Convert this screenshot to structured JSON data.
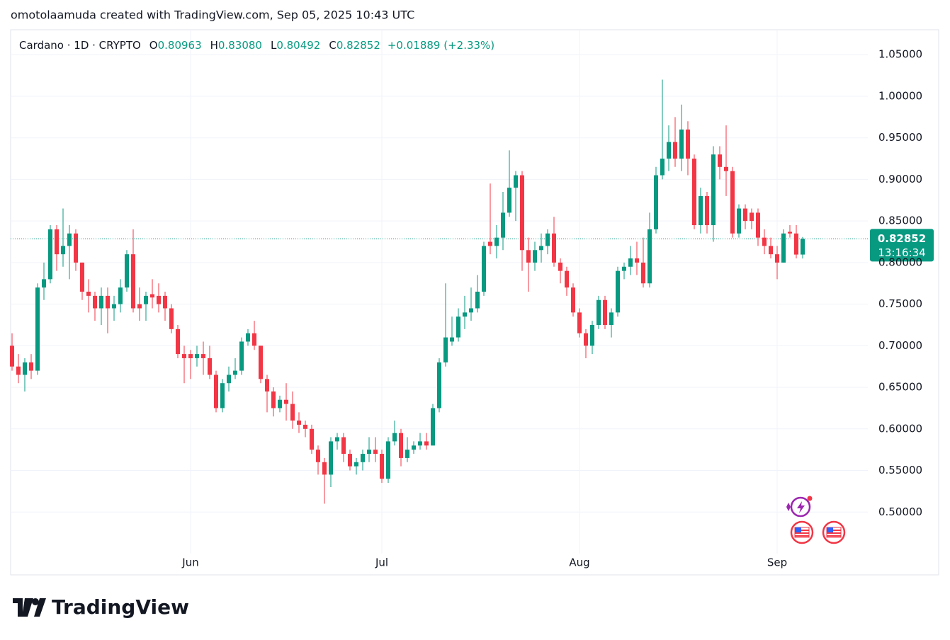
{
  "attribution": "omotolaamuda created with TradingView.com, Sep 05, 2025 10:43 UTC",
  "logo": "TradingView",
  "chart_data": {
    "type": "candlestick",
    "symbol": "Cardano · 1D · CRYPTO",
    "legend": [
      {
        "label": "O",
        "value": "0.80963"
      },
      {
        "label": "H",
        "value": "0.83080"
      },
      {
        "label": "L",
        "value": "0.80492"
      },
      {
        "label": "C",
        "value": "0.82852"
      }
    ],
    "change": "+0.01889 (+2.33%)",
    "price_tag": {
      "price": "0.82852",
      "countdown": "13:16:34"
    },
    "up_color": "#089981",
    "down_color": "#f23645",
    "grid": true,
    "categories": [
      null,
      null,
      null,
      null,
      null,
      null,
      null,
      null,
      null,
      null,
      null,
      null,
      null,
      null,
      null,
      null,
      null,
      null,
      null,
      null,
      null,
      null,
      null,
      null,
      null,
      null,
      null,
      null,
      "Jun",
      null,
      null,
      null,
      null,
      null,
      null,
      null,
      null,
      null,
      null,
      null,
      null,
      null,
      null,
      null,
      null,
      null,
      null,
      null,
      null,
      null,
      null,
      null,
      null,
      null,
      null,
      null,
      null,
      null,
      "Jul",
      null,
      null,
      null,
      null,
      null,
      null,
      null,
      null,
      null,
      null,
      null,
      null,
      null,
      null,
      null,
      null,
      null,
      null,
      null,
      null,
      null,
      null,
      null,
      null,
      null,
      null,
      null,
      null,
      null,
      null,
      "Aug",
      null,
      null,
      null,
      null,
      null,
      null,
      null,
      null,
      null,
      null,
      null,
      null,
      null,
      null,
      null,
      null,
      null,
      null,
      null,
      null,
      null,
      null,
      null,
      null,
      null,
      null,
      null,
      null,
      null,
      null,
      "Sep",
      null,
      null,
      null,
      null
    ],
    "open": [
      0.7,
      0.675,
      0.665,
      0.68,
      0.67,
      0.77,
      0.78,
      0.84,
      0.81,
      0.82,
      0.835,
      0.8,
      0.765,
      0.76,
      0.745,
      0.76,
      0.745,
      0.75,
      0.77,
      0.81,
      0.75,
      0.75,
      0.762,
      0.76,
      0.76,
      0.745,
      0.72,
      0.69,
      0.69,
      0.685,
      0.69,
      0.685,
      0.665,
      0.625,
      0.655,
      0.665,
      0.67,
      0.705,
      0.715,
      0.7,
      0.66,
      0.645,
      0.625,
      0.635,
      0.63,
      0.61,
      0.605,
      0.6,
      0.575,
      0.56,
      0.545,
      0.585,
      0.59,
      0.57,
      0.555,
      0.56,
      0.57,
      0.575,
      0.57,
      0.54,
      0.585,
      0.595,
      0.565,
      0.575,
      0.58,
      0.585,
      0.58,
      0.625,
      0.68,
      0.705,
      0.71,
      0.735,
      0.74,
      0.745,
      0.765,
      0.825,
      0.82,
      0.83,
      0.86,
      0.89,
      0.905,
      0.815,
      0.8,
      0.815,
      0.82,
      0.835,
      0.8,
      0.79,
      0.77,
      0.74,
      0.715,
      0.7,
      0.725,
      0.755,
      0.725,
      0.74,
      0.79,
      0.795,
      0.805,
      0.8,
      0.775,
      0.84,
      0.905,
      0.925,
      0.945,
      0.925,
      0.96,
      0.925,
      0.845,
      0.88,
      0.845,
      0.93,
      0.915,
      0.91,
      0.835,
      0.865,
      0.86,
      0.86,
      0.83,
      0.82,
      0.81,
      0.8,
      0.837,
      0.835,
      0.80963
    ],
    "high": [
      0.715,
      0.69,
      0.685,
      0.69,
      0.775,
      0.8,
      0.845,
      0.845,
      0.865,
      0.845,
      0.84,
      0.8,
      0.78,
      0.765,
      0.77,
      0.77,
      0.76,
      0.78,
      0.815,
      0.84,
      0.77,
      0.765,
      0.78,
      0.775,
      0.765,
      0.75,
      0.725,
      0.7,
      0.695,
      0.7,
      0.705,
      0.7,
      0.67,
      0.66,
      0.675,
      0.685,
      0.71,
      0.72,
      0.73,
      0.7,
      0.665,
      0.65,
      0.64,
      0.655,
      0.645,
      0.62,
      0.61,
      0.605,
      0.58,
      0.565,
      0.59,
      0.595,
      0.595,
      0.575,
      0.565,
      0.575,
      0.59,
      0.59,
      0.575,
      0.59,
      0.61,
      0.6,
      0.59,
      0.585,
      0.595,
      0.595,
      0.63,
      0.685,
      0.775,
      0.735,
      0.745,
      0.76,
      0.77,
      0.785,
      0.825,
      0.895,
      0.845,
      0.885,
      0.935,
      0.91,
      0.91,
      0.83,
      0.825,
      0.835,
      0.84,
      0.855,
      0.805,
      0.795,
      0.775,
      0.745,
      0.72,
      0.73,
      0.76,
      0.76,
      0.745,
      0.795,
      0.8,
      0.82,
      0.825,
      0.83,
      0.86,
      0.915,
      1.02,
      0.965,
      0.975,
      0.99,
      0.97,
      0.93,
      0.89,
      0.885,
      0.94,
      0.94,
      0.965,
      0.915,
      0.87,
      0.87,
      0.865,
      0.865,
      0.84,
      0.83,
      0.82,
      0.84,
      0.845,
      0.845,
      0.8308
    ],
    "low": [
      0.67,
      0.655,
      0.645,
      0.66,
      0.665,
      0.755,
      0.775,
      0.79,
      0.795,
      0.78,
      0.79,
      0.755,
      0.74,
      0.73,
      0.725,
      0.715,
      0.73,
      0.74,
      0.765,
      0.74,
      0.73,
      0.73,
      0.745,
      0.74,
      0.73,
      0.715,
      0.685,
      0.655,
      0.66,
      0.675,
      0.665,
      0.66,
      0.62,
      0.62,
      0.645,
      0.66,
      0.665,
      0.7,
      0.695,
      0.655,
      0.62,
      0.615,
      0.62,
      0.61,
      0.6,
      0.595,
      0.59,
      0.57,
      0.545,
      0.51,
      0.53,
      0.575,
      0.56,
      0.55,
      0.545,
      0.55,
      0.56,
      0.56,
      0.535,
      0.535,
      0.58,
      0.555,
      0.56,
      0.57,
      0.575,
      0.575,
      0.58,
      0.62,
      0.675,
      0.7,
      0.705,
      0.72,
      0.73,
      0.74,
      0.76,
      0.81,
      0.805,
      0.815,
      0.855,
      0.85,
      0.79,
      0.765,
      0.79,
      0.8,
      0.81,
      0.795,
      0.775,
      0.76,
      0.735,
      0.71,
      0.685,
      0.69,
      0.72,
      0.72,
      0.71,
      0.735,
      0.78,
      0.785,
      0.785,
      0.77,
      0.77,
      0.835,
      0.9,
      0.91,
      0.915,
      0.91,
      0.905,
      0.84,
      0.835,
      0.835,
      0.825,
      0.9,
      0.88,
      0.83,
      0.83,
      0.84,
      0.84,
      0.82,
      0.81,
      0.805,
      0.78,
      0.8,
      0.83,
      0.805,
      0.80492
    ],
    "close": [
      0.675,
      0.665,
      0.68,
      0.67,
      0.77,
      0.78,
      0.84,
      0.81,
      0.82,
      0.835,
      0.8,
      0.765,
      0.76,
      0.745,
      0.76,
      0.745,
      0.75,
      0.77,
      0.81,
      0.745,
      0.745,
      0.76,
      0.758,
      0.75,
      0.745,
      0.72,
      0.69,
      0.685,
      0.685,
      0.69,
      0.685,
      0.665,
      0.625,
      0.655,
      0.665,
      0.67,
      0.705,
      0.715,
      0.7,
      0.66,
      0.645,
      0.625,
      0.635,
      0.63,
      0.61,
      0.605,
      0.6,
      0.575,
      0.56,
      0.545,
      0.585,
      0.59,
      0.57,
      0.555,
      0.56,
      0.57,
      0.575,
      0.57,
      0.54,
      0.585,
      0.595,
      0.565,
      0.575,
      0.58,
      0.585,
      0.58,
      0.625,
      0.68,
      0.71,
      0.71,
      0.735,
      0.74,
      0.745,
      0.765,
      0.82,
      0.82,
      0.83,
      0.86,
      0.89,
      0.905,
      0.815,
      0.8,
      0.815,
      0.82,
      0.835,
      0.8,
      0.79,
      0.77,
      0.74,
      0.715,
      0.7,
      0.725,
      0.755,
      0.725,
      0.74,
      0.79,
      0.795,
      0.805,
      0.8,
      0.775,
      0.84,
      0.905,
      0.925,
      0.945,
      0.925,
      0.96,
      0.925,
      0.845,
      0.88,
      0.845,
      0.93,
      0.915,
      0.91,
      0.835,
      0.865,
      0.85,
      0.85,
      0.83,
      0.82,
      0.81,
      0.8,
      0.835,
      0.835,
      0.80963,
      0.82852
    ],
    "ylim": [
      0.45,
      1.08
    ],
    "yticks": [
      {
        "value": 0.5,
        "label": "0.50000"
      },
      {
        "value": 0.55,
        "label": "0.55000"
      },
      {
        "value": 0.6,
        "label": "0.60000"
      },
      {
        "value": 0.65,
        "label": "0.65000"
      },
      {
        "value": 0.7,
        "label": "0.70000"
      },
      {
        "value": 0.75,
        "label": "0.75000"
      },
      {
        "value": 0.8,
        "label": "0.80000"
      },
      {
        "value": 0.85,
        "label": "0.85000"
      },
      {
        "value": 0.9,
        "label": "0.90000"
      },
      {
        "value": 0.95,
        "label": "0.95000"
      },
      {
        "value": 1.0,
        "label": "1.00000"
      },
      {
        "value": 1.05,
        "label": "1.05000"
      }
    ]
  }
}
